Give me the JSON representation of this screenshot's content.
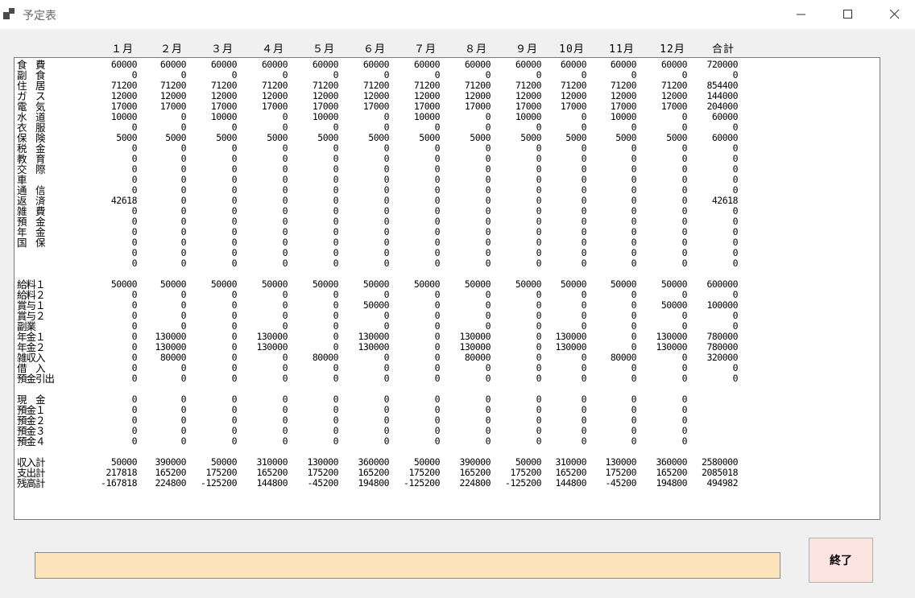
{
  "window": {
    "title": "予定表"
  },
  "months": [
    "１月",
    "２月",
    "３月",
    "４月",
    "５月",
    "６月",
    "７月",
    "８月",
    "９月",
    "10月",
    "11月",
    "12月",
    "合計"
  ],
  "rows": [
    {
      "label": "食　費",
      "values": [
        "60000",
        "60000",
        "60000",
        "60000",
        "60000",
        "60000",
        "60000",
        "60000",
        "60000",
        "60000",
        "60000",
        "60000",
        "720000"
      ]
    },
    {
      "label": "副　食",
      "values": [
        "0",
        "0",
        "0",
        "0",
        "0",
        "0",
        "0",
        "0",
        "0",
        "0",
        "0",
        "0",
        "0"
      ]
    },
    {
      "label": "住　居",
      "values": [
        "71200",
        "71200",
        "71200",
        "71200",
        "71200",
        "71200",
        "71200",
        "71200",
        "71200",
        "71200",
        "71200",
        "71200",
        "854400"
      ]
    },
    {
      "label": "ガ　ス",
      "values": [
        "12000",
        "12000",
        "12000",
        "12000",
        "12000",
        "12000",
        "12000",
        "12000",
        "12000",
        "12000",
        "12000",
        "12000",
        "144000"
      ]
    },
    {
      "label": "電　気",
      "values": [
        "17000",
        "17000",
        "17000",
        "17000",
        "17000",
        "17000",
        "17000",
        "17000",
        "17000",
        "17000",
        "17000",
        "17000",
        "204000"
      ]
    },
    {
      "label": "水　道",
      "values": [
        "10000",
        "0",
        "10000",
        "0",
        "10000",
        "0",
        "10000",
        "0",
        "10000",
        "0",
        "10000",
        "0",
        "60000"
      ]
    },
    {
      "label": "衣　服",
      "values": [
        "0",
        "0",
        "0",
        "0",
        "0",
        "0",
        "0",
        "0",
        "0",
        "0",
        "0",
        "0",
        "0"
      ]
    },
    {
      "label": "保　険",
      "values": [
        "5000",
        "5000",
        "5000",
        "5000",
        "5000",
        "5000",
        "5000",
        "5000",
        "5000",
        "5000",
        "5000",
        "5000",
        "60000"
      ]
    },
    {
      "label": "税　金",
      "values": [
        "0",
        "0",
        "0",
        "0",
        "0",
        "0",
        "0",
        "0",
        "0",
        "0",
        "0",
        "0",
        "0"
      ]
    },
    {
      "label": "教　育",
      "values": [
        "0",
        "0",
        "0",
        "0",
        "0",
        "0",
        "0",
        "0",
        "0",
        "0",
        "0",
        "0",
        "0"
      ]
    },
    {
      "label": "交　際",
      "values": [
        "0",
        "0",
        "0",
        "0",
        "0",
        "0",
        "0",
        "0",
        "0",
        "0",
        "0",
        "0",
        "0"
      ]
    },
    {
      "label": "車",
      "values": [
        "0",
        "0",
        "0",
        "0",
        "0",
        "0",
        "0",
        "0",
        "0",
        "0",
        "0",
        "0",
        "0"
      ]
    },
    {
      "label": "通　信",
      "values": [
        "0",
        "0",
        "0",
        "0",
        "0",
        "0",
        "0",
        "0",
        "0",
        "0",
        "0",
        "0",
        "0"
      ]
    },
    {
      "label": "返　済",
      "values": [
        "42618",
        "0",
        "0",
        "0",
        "0",
        "0",
        "0",
        "0",
        "0",
        "0",
        "0",
        "0",
        "42618"
      ]
    },
    {
      "label": "雑　費",
      "values": [
        "0",
        "0",
        "0",
        "0",
        "0",
        "0",
        "0",
        "0",
        "0",
        "0",
        "0",
        "0",
        "0"
      ]
    },
    {
      "label": "預　金",
      "values": [
        "0",
        "0",
        "0",
        "0",
        "0",
        "0",
        "0",
        "0",
        "0",
        "0",
        "0",
        "0",
        "0"
      ]
    },
    {
      "label": "年　金",
      "values": [
        "0",
        "0",
        "0",
        "0",
        "0",
        "0",
        "0",
        "0",
        "0",
        "0",
        "0",
        "0",
        "0"
      ]
    },
    {
      "label": "国　保",
      "values": [
        "0",
        "0",
        "0",
        "0",
        "0",
        "0",
        "0",
        "0",
        "0",
        "0",
        "0",
        "0",
        "0"
      ]
    },
    {
      "label": "",
      "values": [
        "0",
        "0",
        "0",
        "0",
        "0",
        "0",
        "0",
        "0",
        "0",
        "0",
        "0",
        "0",
        "0"
      ]
    },
    {
      "label": "",
      "values": [
        "0",
        "0",
        "0",
        "0",
        "0",
        "0",
        "0",
        "0",
        "0",
        "0",
        "0",
        "0",
        "0"
      ]
    },
    {
      "label": "",
      "values": []
    },
    {
      "label": "給料１",
      "values": [
        "50000",
        "50000",
        "50000",
        "50000",
        "50000",
        "50000",
        "50000",
        "50000",
        "50000",
        "50000",
        "50000",
        "50000",
        "600000"
      ]
    },
    {
      "label": "給料２",
      "values": [
        "0",
        "0",
        "0",
        "0",
        "0",
        "0",
        "0",
        "0",
        "0",
        "0",
        "0",
        "0",
        "0"
      ]
    },
    {
      "label": "賞与１",
      "values": [
        "0",
        "0",
        "0",
        "0",
        "0",
        "50000",
        "0",
        "0",
        "0",
        "0",
        "0",
        "50000",
        "100000"
      ]
    },
    {
      "label": "賞与２",
      "values": [
        "0",
        "0",
        "0",
        "0",
        "0",
        "0",
        "0",
        "0",
        "0",
        "0",
        "0",
        "0",
        "0"
      ]
    },
    {
      "label": "副業",
      "values": [
        "0",
        "0",
        "0",
        "0",
        "0",
        "0",
        "0",
        "0",
        "0",
        "0",
        "0",
        "0",
        "0"
      ]
    },
    {
      "label": "年金１",
      "values": [
        "0",
        "130000",
        "0",
        "130000",
        "0",
        "130000",
        "0",
        "130000",
        "0",
        "130000",
        "0",
        "130000",
        "780000"
      ]
    },
    {
      "label": "年金２",
      "values": [
        "0",
        "130000",
        "0",
        "130000",
        "0",
        "130000",
        "0",
        "130000",
        "0",
        "130000",
        "0",
        "130000",
        "780000"
      ]
    },
    {
      "label": "雑収入",
      "values": [
        "0",
        "80000",
        "0",
        "0",
        "80000",
        "0",
        "0",
        "80000",
        "0",
        "0",
        "80000",
        "0",
        "320000"
      ]
    },
    {
      "label": "借　入",
      "values": [
        "0",
        "0",
        "0",
        "0",
        "0",
        "0",
        "0",
        "0",
        "0",
        "0",
        "0",
        "0",
        "0"
      ]
    },
    {
      "label": "預金引出",
      "values": [
        "0",
        "0",
        "0",
        "0",
        "0",
        "0",
        "0",
        "0",
        "0",
        "0",
        "0",
        "0",
        "0"
      ]
    },
    {
      "label": "",
      "values": []
    },
    {
      "label": "現　金",
      "values": [
        "0",
        "0",
        "0",
        "0",
        "0",
        "0",
        "0",
        "0",
        "0",
        "0",
        "0",
        "0",
        ""
      ]
    },
    {
      "label": "預金１",
      "values": [
        "0",
        "0",
        "0",
        "0",
        "0",
        "0",
        "0",
        "0",
        "0",
        "0",
        "0",
        "0",
        ""
      ]
    },
    {
      "label": "預金２",
      "values": [
        "0",
        "0",
        "0",
        "0",
        "0",
        "0",
        "0",
        "0",
        "0",
        "0",
        "0",
        "0",
        ""
      ]
    },
    {
      "label": "預金３",
      "values": [
        "0",
        "0",
        "0",
        "0",
        "0",
        "0",
        "0",
        "0",
        "0",
        "0",
        "0",
        "0",
        ""
      ]
    },
    {
      "label": "預金４",
      "values": [
        "0",
        "0",
        "0",
        "0",
        "0",
        "0",
        "0",
        "0",
        "0",
        "0",
        "0",
        "0",
        ""
      ]
    },
    {
      "label": "",
      "values": []
    },
    {
      "label": "収入計",
      "values": [
        "50000",
        "390000",
        "50000",
        "310000",
        "130000",
        "360000",
        "50000",
        "390000",
        "50000",
        "310000",
        "130000",
        "360000",
        "2580000"
      ]
    },
    {
      "label": "支出計",
      "values": [
        "217818",
        "165200",
        "175200",
        "165200",
        "175200",
        "165200",
        "175200",
        "165200",
        "175200",
        "165200",
        "175200",
        "165200",
        "2085018"
      ]
    },
    {
      "label": "残高計",
      "values": [
        "-167818",
        "224800",
        "-125200",
        "144800",
        "-45200",
        "194800",
        "-125200",
        "224800",
        "-125200",
        "144800",
        "-45200",
        "194800",
        "494982"
      ]
    }
  ],
  "status": {
    "value": ""
  },
  "end_button": {
    "label": "終了"
  }
}
